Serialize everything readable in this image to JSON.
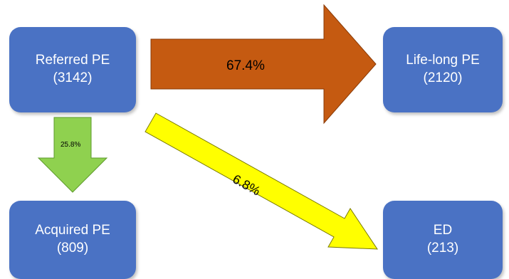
{
  "nodes": {
    "referred": {
      "name": "Referred PE",
      "count": "(3142)"
    },
    "lifelong": {
      "name": "Life-long PE",
      "count": "(2120)"
    },
    "acquired": {
      "name": "Acquired PE",
      "count": "(809)"
    },
    "ed": {
      "name": "ED",
      "count": "(213)"
    }
  },
  "flows": {
    "to_lifelong": {
      "label": "67.4%",
      "color": "#c55a11"
    },
    "to_acquired": {
      "label": "25.8%",
      "color": "#8fd14f"
    },
    "to_ed": {
      "label": "6.8%",
      "color": "#ffff00"
    }
  },
  "colors": {
    "box": "#4a72c4",
    "box_text": "#ffffff"
  }
}
